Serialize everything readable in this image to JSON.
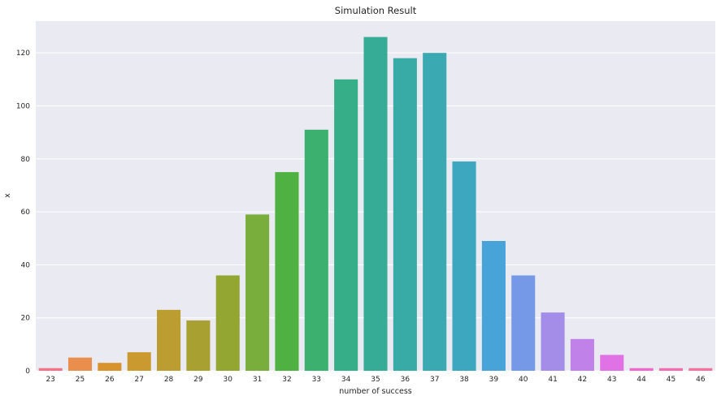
{
  "chart_data": {
    "type": "bar",
    "title": "Simulation Result",
    "xlabel": "number of success",
    "ylabel": "x",
    "categories": [
      "23",
      "25",
      "26",
      "27",
      "28",
      "29",
      "30",
      "31",
      "32",
      "33",
      "34",
      "35",
      "36",
      "37",
      "38",
      "39",
      "40",
      "41",
      "42",
      "43",
      "44",
      "45",
      "46"
    ],
    "values": [
      1,
      5,
      3,
      7,
      23,
      19,
      36,
      59,
      75,
      91,
      110,
      126,
      118,
      120,
      79,
      49,
      36,
      22,
      12,
      6,
      1,
      1,
      1
    ],
    "ylim": [
      0,
      132
    ],
    "yticks": [
      0,
      20,
      40,
      60,
      80,
      100,
      120
    ],
    "grid": true,
    "background": "#eaeaf2",
    "colors": [
      "#f77189",
      "#e98e4d",
      "#d8922e",
      "#ca9a31",
      "#bb9d31",
      "#a8a131",
      "#93a632",
      "#79ad3c",
      "#4fb142",
      "#3cb16f",
      "#36ae87",
      "#36ac96",
      "#38aba6",
      "#3aa9b1",
      "#3ca7bf",
      "#47a3d8",
      "#7699e7",
      "#a38de8",
      "#c082e8",
      "#e072e6",
      "#f067cd",
      "#f46cb2",
      "#f571a0"
    ]
  }
}
